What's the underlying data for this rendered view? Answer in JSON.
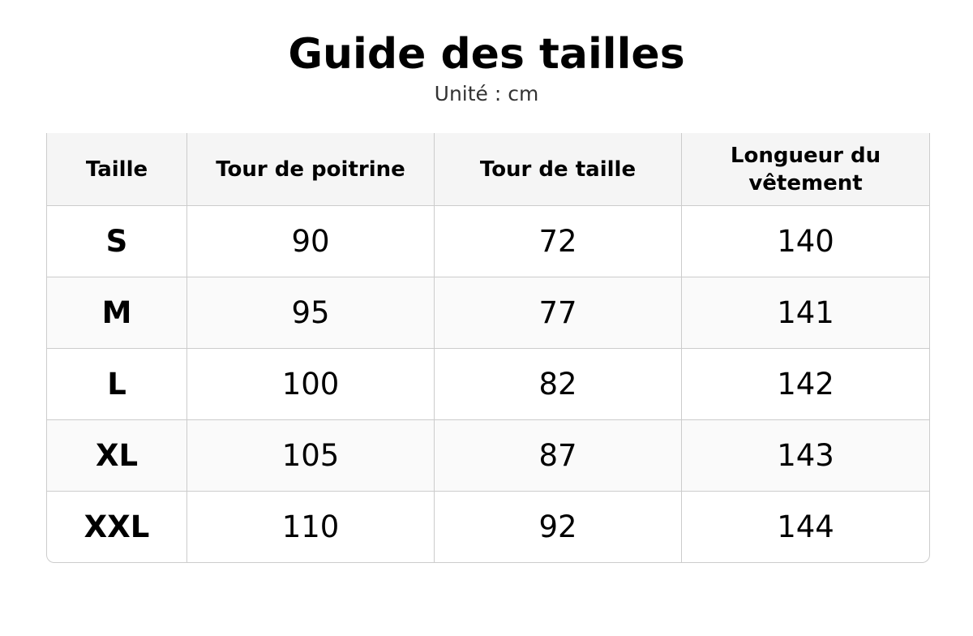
{
  "header": {
    "title": "Guide des tailles",
    "subtitle": "Unité : cm"
  },
  "table": {
    "columns": [
      "Taille",
      "Tour de poitrine",
      "Tour de taille",
      "Longueur du vêtement"
    ],
    "rows": [
      [
        "S",
        90,
        72,
        140
      ],
      [
        "M",
        95,
        77,
        141
      ],
      [
        "L",
        100,
        82,
        142
      ],
      [
        "XL",
        105,
        87,
        143
      ],
      [
        "XXL",
        110,
        92,
        144
      ]
    ]
  }
}
